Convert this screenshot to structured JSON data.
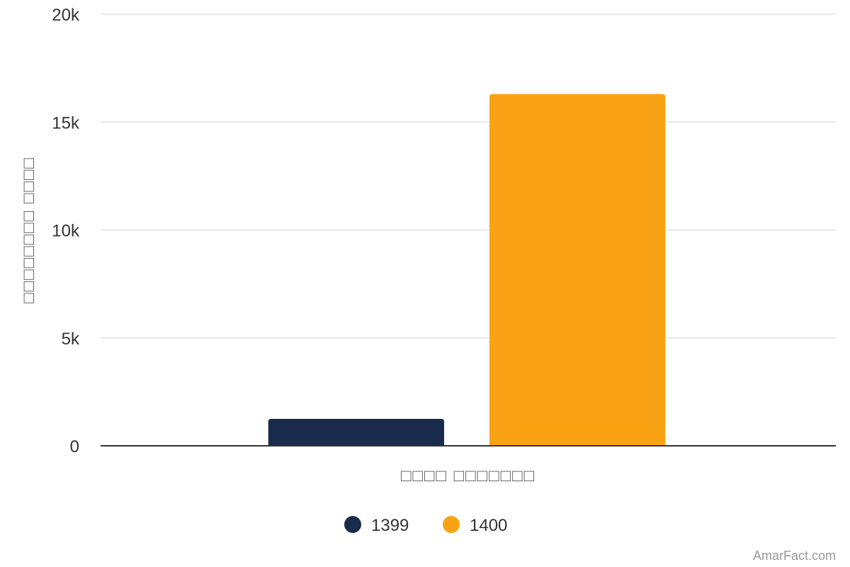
{
  "chart_data": {
    "type": "bar",
    "categories": [
      "□□□□ □□□□□□□"
    ],
    "series": [
      {
        "name": "1399",
        "values": [
          1250
        ],
        "color": "#1a2b4c"
      },
      {
        "name": "1400",
        "values": [
          16300
        ],
        "color": "#f9a314"
      }
    ],
    "title": "",
    "xlabel": "□□□□ □□□□□□□",
    "ylabel": "□□□□□□□□ □□□□",
    "ylim": [
      0,
      20000
    ],
    "yticks": [
      {
        "value": 0,
        "label": "0"
      },
      {
        "value": 5000,
        "label": "5k"
      },
      {
        "value": 10000,
        "label": "10k"
      },
      {
        "value": 15000,
        "label": "15k"
      },
      {
        "value": 20000,
        "label": "20k"
      }
    ],
    "grid": true,
    "legend_position": "bottom-center"
  },
  "credit": "AmarFact.com"
}
